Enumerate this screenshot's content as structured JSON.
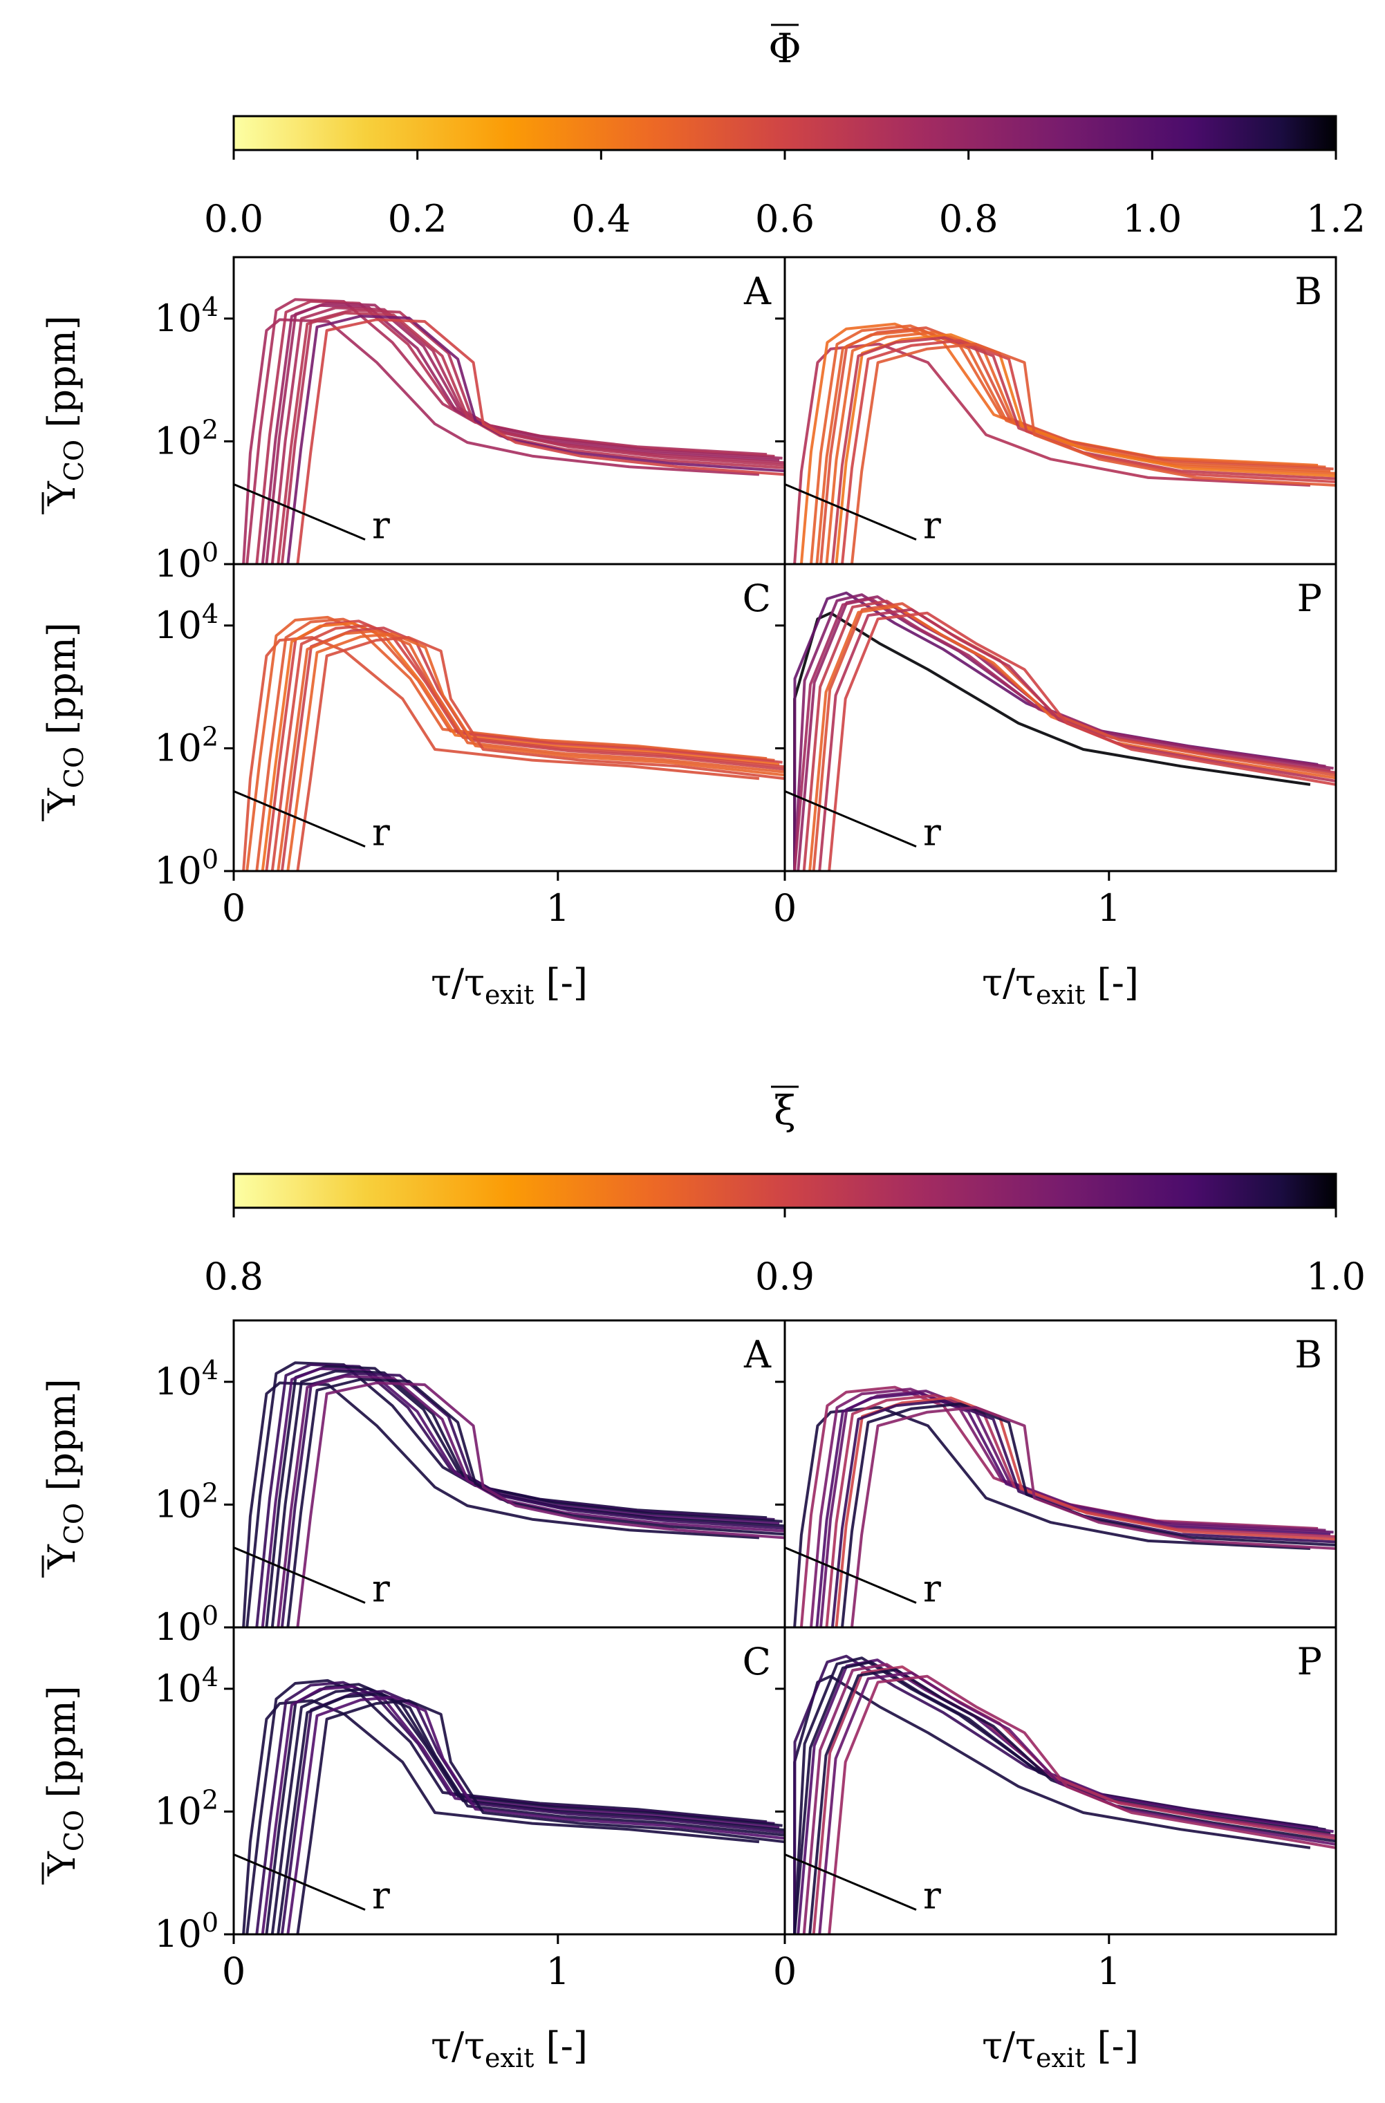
{
  "figure": {
    "colorbars": [
      {
        "title": "Φ",
        "ticks": [
          "0.0",
          "0.2",
          "0.4",
          "0.6",
          "0.8",
          "1.0",
          "1.2"
        ]
      },
      {
        "title": "ξ",
        "ticks": [
          "0.8",
          "0.9",
          "1.0"
        ]
      }
    ],
    "ylabel_main": "Y",
    "ylabel_sub": "CO",
    "ylabel_unit": "[ppm]",
    "xlabel_main": "τ/τ",
    "xlabel_sub": "exit",
    "xlabel_unit": "[-]",
    "y_ticks": {
      "base": "10",
      "exps": [
        "4",
        "2",
        "0"
      ]
    },
    "x_ticks": [
      "0",
      "1"
    ],
    "annotation": "r"
  },
  "chart_data": [
    {
      "type": "line",
      "colormap": "inferno_r",
      "color_by": "Φ",
      "color_range": [
        0.0,
        1.2
      ],
      "xlim": [
        0,
        1.7
      ],
      "ylim": [
        1,
        100000
      ],
      "yscale": "log",
      "panels": [
        {
          "label": "A",
          "series_colors": [
            0.74,
            0.72,
            0.7,
            0.76,
            0.78,
            0.72,
            0.7,
            0.68,
            0.9,
            0.6
          ],
          "x": [
            0.11,
            0.15,
            0.2,
            0.3,
            0.45,
            0.6,
            0.7,
            0.8,
            1.0,
            1.3,
            1.7
          ],
          "y_typical": [
            1,
            100,
            10000,
            15000,
            14000,
            3000,
            300,
            150,
            90,
            60,
            45
          ]
        },
        {
          "label": "B",
          "series_colors": [
            0.7,
            0.45,
            0.5,
            0.55,
            0.5,
            0.48,
            0.42,
            0.65,
            0.6,
            0.52
          ],
          "x": [
            0.12,
            0.15,
            0.2,
            0.3,
            0.45,
            0.6,
            0.7,
            0.9,
            1.2,
            1.7
          ],
          "y_typical": [
            1,
            50,
            3000,
            5000,
            6000,
            3000,
            200,
            80,
            40,
            30
          ]
        },
        {
          "label": "C",
          "series_colors": [
            0.55,
            0.5,
            0.52,
            0.6,
            0.45,
            0.58,
            0.62,
            0.5,
            0.48,
            0.56
          ],
          "x": [
            0.11,
            0.15,
            0.2,
            0.3,
            0.4,
            0.5,
            0.6,
            0.7,
            1.0,
            1.3,
            1.7
          ],
          "y_typical": [
            1,
            50,
            5000,
            9000,
            10000,
            6000,
            1000,
            150,
            100,
            80,
            50
          ]
        },
        {
          "label": "P",
          "series_colors": [
            1.2,
            0.95,
            0.85,
            0.8,
            0.75,
            0.65,
            0.55,
            0.48,
            0.7,
            0.6
          ],
          "x": [
            0.05,
            0.1,
            0.2,
            0.3,
            0.45,
            0.6,
            0.8,
            1.0,
            1.3,
            1.7
          ],
          "y_typical": [
            1,
            1000,
            20000,
            25000,
            8000,
            3000,
            400,
            150,
            80,
            40
          ]
        }
      ]
    },
    {
      "type": "line",
      "colormap": "inferno_r",
      "color_by": "ξ",
      "color_range": [
        0.8,
        1.0
      ],
      "xlim": [
        0,
        1.7
      ],
      "ylim": [
        1,
        100000
      ],
      "yscale": "log",
      "panels": [
        {
          "label": "A",
          "series_colors": [
            0.99,
            0.99,
            0.98,
            0.99,
            0.97,
            0.99,
            0.98,
            0.96,
            0.99,
            0.95
          ],
          "x": [
            0.11,
            0.15,
            0.2,
            0.3,
            0.45,
            0.6,
            0.7,
            0.8,
            1.0,
            1.3,
            1.7
          ],
          "y_typical": [
            1,
            100,
            10000,
            15000,
            14000,
            3000,
            300,
            150,
            90,
            60,
            45
          ]
        },
        {
          "label": "B",
          "series_colors": [
            0.99,
            0.93,
            0.95,
            0.96,
            0.97,
            0.92,
            0.9,
            0.98,
            0.99,
            0.94
          ],
          "x": [
            0.12,
            0.15,
            0.2,
            0.3,
            0.45,
            0.6,
            0.7,
            0.9,
            1.2,
            1.7
          ],
          "y_typical": [
            1,
            50,
            3000,
            5000,
            6000,
            3000,
            200,
            80,
            40,
            30
          ]
        },
        {
          "label": "C",
          "series_colors": [
            0.99,
            0.99,
            0.98,
            0.99,
            0.97,
            0.99,
            0.98,
            0.99,
            0.97,
            0.99
          ],
          "x": [
            0.11,
            0.15,
            0.2,
            0.3,
            0.4,
            0.5,
            0.6,
            0.7,
            1.0,
            1.3,
            1.7
          ],
          "y_typical": [
            1,
            50,
            5000,
            9000,
            10000,
            6000,
            1000,
            150,
            100,
            80,
            50
          ]
        },
        {
          "label": "P",
          "series_colors": [
            0.99,
            0.98,
            0.99,
            0.97,
            0.99,
            0.94,
            0.92,
            0.99,
            0.96,
            0.93
          ],
          "x": [
            0.05,
            0.1,
            0.2,
            0.3,
            0.45,
            0.6,
            0.8,
            1.0,
            1.3,
            1.7
          ],
          "y_typical": [
            1,
            1000,
            20000,
            25000,
            8000,
            3000,
            400,
            150,
            80,
            40
          ]
        }
      ]
    }
  ]
}
